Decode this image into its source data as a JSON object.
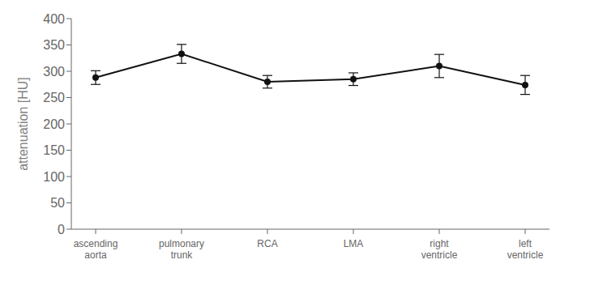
{
  "chart_data": {
    "type": "line",
    "categories": [
      "ascending\naorta",
      "pulmonary\ntrunk",
      "RCA",
      "LMA",
      "right\nventricle",
      "left\nventricle"
    ],
    "values": [
      288,
      333,
      280,
      285,
      310,
      274
    ],
    "yerr": [
      13,
      18,
      12,
      12,
      22,
      18
    ],
    "ylabel": "attenuation [HU]",
    "ylim": [
      0,
      400
    ],
    "yticks": [
      0,
      50,
      100,
      150,
      200,
      250,
      300,
      350,
      400
    ],
    "color": "#111111",
    "marker": "circle",
    "grid": false
  }
}
